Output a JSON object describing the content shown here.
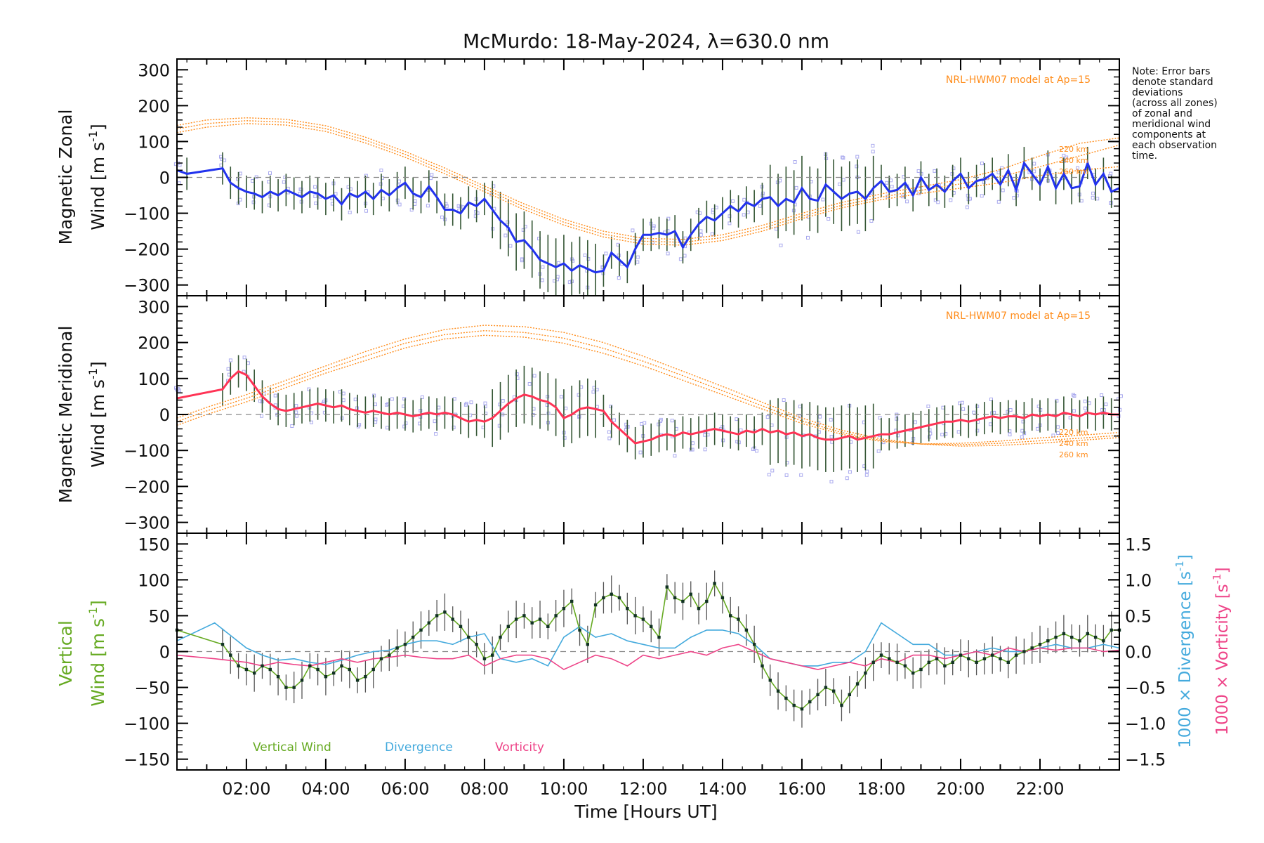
{
  "figure": {
    "title": "McMurdo: 18-May-2024, λ=630.0 nm",
    "note_lines": [
      "Note: Error bars",
      "denote standard",
      "deviations",
      "(across all zones)",
      "of zonal and",
      "meridional wind",
      "components at",
      "each observation",
      "time."
    ],
    "colors": {
      "zonal": "#2233ee",
      "meridional": "#ff3355",
      "model": "#ff8c1a",
      "vertical": "#66aa22",
      "divergence": "#44aadd",
      "vorticity": "#ee4488",
      "scatter": "#aaaaee",
      "errorbar": "#335533"
    }
  },
  "chart_data": [
    {
      "type": "line",
      "panel": "zonal",
      "ylabel_line1": "Magnetic Zonal",
      "ylabel_line2": "Wind [m s",
      "ylabel_sup": "-1",
      "ylabel_close": "]",
      "model_label": "NRL-HWM07 model at Ap=15",
      "height_labels": [
        "220 km",
        "240 km",
        "260 km"
      ],
      "xlim": [
        0.25,
        24.0
      ],
      "ylim": [
        -330,
        330
      ],
      "yticks": [
        -300,
        -200,
        -100,
        0,
        100,
        200,
        300
      ],
      "x": [
        0.25,
        0.5,
        1.4,
        1.6,
        1.8,
        2.0,
        2.2,
        2.4,
        2.6,
        2.8,
        3.0,
        3.2,
        3.4,
        3.6,
        3.8,
        4.0,
        4.2,
        4.4,
        4.6,
        4.8,
        5.0,
        5.2,
        5.4,
        5.6,
        5.8,
        6.0,
        6.2,
        6.4,
        6.6,
        6.8,
        7.0,
        7.2,
        7.4,
        7.6,
        7.8,
        8.0,
        8.2,
        8.4,
        8.6,
        8.8,
        9.0,
        9.2,
        9.4,
        9.6,
        9.8,
        10.0,
        10.2,
        10.4,
        10.6,
        10.8,
        11.0,
        11.2,
        11.4,
        11.6,
        11.8,
        12.0,
        12.2,
        12.4,
        12.6,
        12.8,
        13.0,
        13.2,
        13.4,
        13.6,
        13.8,
        14.0,
        14.2,
        14.4,
        14.6,
        14.8,
        15.0,
        15.2,
        15.4,
        15.6,
        15.8,
        16.0,
        16.2,
        16.4,
        16.6,
        16.8,
        17.0,
        17.2,
        17.4,
        17.6,
        17.8,
        18.0,
        18.2,
        18.4,
        18.6,
        18.8,
        19.0,
        19.2,
        19.4,
        19.6,
        19.8,
        20.0,
        20.2,
        20.4,
        20.6,
        20.8,
        21.0,
        21.2,
        21.4,
        21.6,
        21.8,
        22.0,
        22.2,
        22.4,
        22.6,
        22.8,
        23.0,
        23.2,
        23.4,
        23.6,
        23.8,
        24.0
      ],
      "y": [
        20,
        10,
        25,
        -15,
        -30,
        -40,
        -45,
        -55,
        -40,
        -50,
        -35,
        -45,
        -55,
        -40,
        -45,
        -60,
        -50,
        -75,
        -45,
        -55,
        -40,
        -60,
        -35,
        -50,
        -30,
        -15,
        -45,
        -55,
        -25,
        -55,
        -90,
        -90,
        -100,
        -70,
        -80,
        -60,
        -90,
        -120,
        -140,
        -180,
        -175,
        -200,
        -230,
        -240,
        -250,
        -240,
        -260,
        -245,
        -255,
        -265,
        -260,
        -210,
        -230,
        -250,
        -200,
        -160,
        -160,
        -155,
        -160,
        -150,
        -195,
        -160,
        -130,
        -110,
        -120,
        -100,
        -80,
        -95,
        -70,
        -80,
        -60,
        -55,
        -80,
        -60,
        -70,
        -30,
        -60,
        -65,
        -20,
        -40,
        -60,
        -45,
        -40,
        -60,
        -30,
        -10,
        -40,
        -35,
        -15,
        -50,
        0,
        -35,
        -20,
        -40,
        -10,
        10,
        -30,
        -10,
        -5,
        10,
        -20,
        20,
        -35,
        40,
        10,
        -20,
        30,
        -30,
        10,
        -30,
        -25,
        40,
        -20,
        10,
        -40,
        -30
      ],
      "model_x": [
        0.25,
        1.0,
        2.0,
        3.0,
        4.0,
        5.0,
        6.0,
        7.0,
        8.0,
        9.0,
        10.0,
        11.0,
        12.0,
        13.0,
        14.0,
        15.0,
        16.0,
        17.0,
        18.0,
        19.0,
        20.0,
        21.0,
        22.0,
        23.0,
        24.0
      ],
      "model_y": [
        [
          125,
          140,
          150,
          146,
          128,
          96,
          56,
          10,
          -40,
          -90,
          -133,
          -166,
          -186,
          -189,
          -176,
          -150,
          -115,
          -85,
          -62,
          -45,
          -30,
          -15,
          5,
          20,
          30
        ],
        [
          135,
          150,
          158,
          154,
          136,
          104,
          64,
          18,
          -32,
          -82,
          -125,
          -158,
          -178,
          -181,
          -168,
          -142,
          -108,
          -78,
          -55,
          -36,
          -18,
          2,
          30,
          60,
          90
        ],
        [
          145,
          160,
          166,
          162,
          144,
          112,
          72,
          26,
          -24,
          -74,
          -117,
          -150,
          -170,
          -173,
          -160,
          -134,
          -100,
          -70,
          -46,
          -26,
          -6,
          22,
          60,
          95,
          110
        ]
      ]
    },
    {
      "type": "line",
      "panel": "meridional",
      "ylabel_line1": "Magnetic Meridional",
      "ylabel_line2": "Wind [m s",
      "ylabel_sup": "-1",
      "ylabel_close": "]",
      "model_label": "NRL-HWM07 model at Ap=15",
      "height_labels": [
        "220 km",
        "240 km",
        "260 km"
      ],
      "xlim": [
        0.25,
        24.0
      ],
      "ylim": [
        -330,
        330
      ],
      "yticks": [
        -300,
        -200,
        -100,
        0,
        100,
        200,
        300
      ],
      "x": [
        0.25,
        1.4,
        1.6,
        1.8,
        2.0,
        2.2,
        2.4,
        2.6,
        2.8,
        3.0,
        3.2,
        3.4,
        3.6,
        3.8,
        4.0,
        4.2,
        4.4,
        4.6,
        4.8,
        5.0,
        5.2,
        5.4,
        5.6,
        5.8,
        6.0,
        6.2,
        6.4,
        6.6,
        6.8,
        7.0,
        7.2,
        7.4,
        7.6,
        7.8,
        8.0,
        8.2,
        8.4,
        8.6,
        8.8,
        9.0,
        9.2,
        9.4,
        9.6,
        9.8,
        10.0,
        10.2,
        10.4,
        10.6,
        10.8,
        11.0,
        11.2,
        11.4,
        11.6,
        11.8,
        12.0,
        12.2,
        12.4,
        12.6,
        12.8,
        13.0,
        13.2,
        13.4,
        13.6,
        13.8,
        14.0,
        14.2,
        14.4,
        14.6,
        14.8,
        15.0,
        15.2,
        15.4,
        15.6,
        15.8,
        16.0,
        16.2,
        16.4,
        16.6,
        16.8,
        17.0,
        17.2,
        17.4,
        17.6,
        17.8,
        18.0,
        18.2,
        18.4,
        18.6,
        18.8,
        19.0,
        19.2,
        19.4,
        19.6,
        19.8,
        20.0,
        20.2,
        20.4,
        20.6,
        20.8,
        21.0,
        21.2,
        21.4,
        21.6,
        21.8,
        22.0,
        22.2,
        22.4,
        22.6,
        22.8,
        23.0,
        23.2,
        23.4,
        23.6,
        23.8,
        24.0
      ],
      "y": [
        45,
        70,
        100,
        120,
        110,
        80,
        50,
        30,
        15,
        10,
        15,
        20,
        25,
        30,
        25,
        20,
        25,
        15,
        10,
        5,
        10,
        5,
        0,
        5,
        0,
        -5,
        0,
        5,
        0,
        5,
        0,
        -10,
        -20,
        -15,
        -20,
        -10,
        10,
        30,
        45,
        55,
        50,
        40,
        35,
        20,
        -10,
        0,
        15,
        20,
        15,
        10,
        -20,
        -40,
        -60,
        -80,
        -75,
        -70,
        -60,
        -55,
        -60,
        -50,
        -55,
        -50,
        -45,
        -40,
        -45,
        -50,
        -55,
        -45,
        -50,
        -40,
        -50,
        -45,
        -55,
        -50,
        -60,
        -55,
        -65,
        -70,
        -70,
        -65,
        -60,
        -70,
        -65,
        -60,
        -55,
        -55,
        -50,
        -45,
        -40,
        -35,
        -30,
        -25,
        -20,
        -20,
        -15,
        -20,
        -15,
        -10,
        -5,
        -10,
        -5,
        -5,
        -10,
        0,
        -5,
        0,
        -5,
        5,
        0,
        -5,
        5,
        0,
        5,
        0,
        0
      ],
      "model_x": [
        0.25,
        1.0,
        2.0,
        3.0,
        4.0,
        5.0,
        6.0,
        7.0,
        8.0,
        9.0,
        10.0,
        11.0,
        12.0,
        13.0,
        14.0,
        15.0,
        16.0,
        17.0,
        18.0,
        19.0,
        20.0,
        21.0,
        22.0,
        23.0,
        24.0
      ],
      "model_y": [
        [
          -30,
          0,
          35,
          75,
          115,
          150,
          185,
          210,
          220,
          215,
          198,
          170,
          135,
          95,
          55,
          15,
          -25,
          -55,
          -75,
          -82,
          -80,
          -74,
          -65,
          -58,
          -50
        ],
        [
          -20,
          10,
          45,
          85,
          125,
          162,
          198,
          222,
          233,
          228,
          212,
          184,
          148,
          108,
          66,
          24,
          -18,
          -50,
          -72,
          -82,
          -84,
          -80,
          -73,
          -66,
          -58
        ],
        [
          -10,
          20,
          55,
          95,
          135,
          175,
          210,
          236,
          248,
          244,
          228,
          200,
          162,
          120,
          78,
          34,
          -10,
          -44,
          -68,
          -82,
          -88,
          -86,
          -80,
          -72,
          -64
        ]
      ]
    },
    {
      "type": "line",
      "panel": "vertical",
      "ylabel_line1": "Vertical",
      "ylabel_line2": "Wind [m s",
      "ylabel_sup": "-1",
      "ylabel_close": "]",
      "right_axis1_label": "1000 × Divergence [s",
      "right_axis2_label": "1000 × Vorticity [s",
      "right_axis_sup": "-1",
      "right_axis_close": "]",
      "xlabel": "Time [Hours UT]",
      "xtick_labels": [
        "02:00",
        "04:00",
        "06:00",
        "08:00",
        "10:00",
        "12:00",
        "14:00",
        "16:00",
        "18:00",
        "20:00",
        "22:00"
      ],
      "xticks": [
        2,
        4,
        6,
        8,
        10,
        12,
        14,
        16,
        18,
        20,
        22
      ],
      "xlim": [
        0.25,
        24.0
      ],
      "ylim": [
        -165,
        165
      ],
      "yticks": [
        -150,
        -100,
        -50,
        0,
        50,
        100,
        150
      ],
      "y2lim": [
        -1.65,
        1.65
      ],
      "y2ticks": [
        -1.5,
        -1.0,
        -0.5,
        0.0,
        0.5,
        1.0,
        1.5
      ],
      "y2tick_labels": [
        "-1.5",
        "-1.0",
        "-0.5",
        "0.0",
        "0.5",
        "1.0",
        "1.5"
      ],
      "legend": [
        "Vertical Wind",
        "Divergence",
        "Vorticity"
      ],
      "vertical_x": [
        0.25,
        1.4,
        1.6,
        1.8,
        2.0,
        2.2,
        2.4,
        2.6,
        2.8,
        3.0,
        3.2,
        3.4,
        3.6,
        3.8,
        4.0,
        4.2,
        4.4,
        4.6,
        4.8,
        5.0,
        5.2,
        5.4,
        5.6,
        5.8,
        6.0,
        6.2,
        6.4,
        6.6,
        6.8,
        7.0,
        7.2,
        7.4,
        7.6,
        7.8,
        8.0,
        8.2,
        8.4,
        8.6,
        8.8,
        9.0,
        9.2,
        9.4,
        9.6,
        9.8,
        10.0,
        10.2,
        10.4,
        10.6,
        10.8,
        11.0,
        11.2,
        11.4,
        11.6,
        11.8,
        12.0,
        12.2,
        12.4,
        12.6,
        12.8,
        13.0,
        13.2,
        13.4,
        13.6,
        13.8,
        14.0,
        14.2,
        14.4,
        14.6,
        14.8,
        15.0,
        15.2,
        15.4,
        15.6,
        15.8,
        16.0,
        16.2,
        16.4,
        16.6,
        16.8,
        17.0,
        17.2,
        17.4,
        17.6,
        17.8,
        18.0,
        18.2,
        18.4,
        18.6,
        18.8,
        19.0,
        19.2,
        19.4,
        19.6,
        19.8,
        20.0,
        20.2,
        20.4,
        20.6,
        20.8,
        21.0,
        21.2,
        21.4,
        21.6,
        21.8,
        22.0,
        22.2,
        22.4,
        22.6,
        22.8,
        23.0,
        23.2,
        23.4,
        23.6,
        23.8,
        24.0
      ],
      "vertical_y": [
        30,
        10,
        -5,
        -20,
        -25,
        -30,
        -20,
        -25,
        -35,
        -50,
        -50,
        -40,
        -20,
        -25,
        -35,
        -30,
        -20,
        -25,
        -40,
        -35,
        -25,
        -10,
        -5,
        5,
        10,
        20,
        30,
        40,
        50,
        55,
        45,
        35,
        20,
        10,
        -10,
        -5,
        20,
        35,
        45,
        50,
        40,
        45,
        35,
        50,
        60,
        70,
        30,
        10,
        65,
        75,
        80,
        75,
        60,
        50,
        45,
        35,
        20,
        90,
        75,
        70,
        80,
        60,
        70,
        95,
        75,
        50,
        45,
        30,
        10,
        -20,
        -40,
        -55,
        -65,
        -75,
        -80,
        -70,
        -60,
        -50,
        -55,
        -75,
        -60,
        -45,
        -30,
        -15,
        -5,
        -10,
        -15,
        -20,
        -30,
        -25,
        -15,
        -10,
        -20,
        -15,
        -5,
        -10,
        -15,
        -10,
        -5,
        -10,
        -15,
        -5,
        0,
        5,
        10,
        15,
        20,
        25,
        20,
        15,
        25,
        20,
        15,
        30,
        30
      ],
      "divergence_x": [
        0.25,
        1.2,
        2.0,
        2.4,
        2.8,
        3.2,
        3.6,
        4.0,
        4.4,
        4.8,
        5.2,
        5.6,
        6.0,
        6.4,
        6.8,
        7.2,
        7.6,
        8.0,
        8.4,
        8.8,
        9.2,
        9.6,
        10.0,
        10.4,
        10.8,
        11.2,
        11.6,
        12.0,
        12.4,
        12.8,
        13.2,
        13.6,
        14.0,
        14.4,
        14.8,
        15.2,
        15.6,
        16.0,
        16.4,
        16.8,
        17.2,
        17.6,
        18.0,
        18.4,
        18.8,
        19.2,
        19.6,
        20.0,
        20.4,
        20.8,
        21.2,
        21.6,
        22.0,
        22.4,
        22.8,
        23.2,
        23.6,
        24.0
      ],
      "divergence_y": [
        0.15,
        0.4,
        0.05,
        -0.05,
        -0.12,
        -0.1,
        -0.15,
        -0.18,
        -0.12,
        -0.05,
        0.0,
        0.02,
        0.1,
        0.15,
        0.15,
        0.1,
        0.2,
        0.25,
        -0.1,
        -0.15,
        -0.1,
        -0.2,
        0.2,
        0.35,
        0.2,
        0.25,
        0.15,
        0.1,
        0.05,
        0.05,
        0.2,
        0.3,
        0.3,
        0.25,
        0.1,
        -0.1,
        -0.15,
        -0.2,
        -0.2,
        -0.15,
        -0.15,
        0.0,
        0.4,
        0.25,
        0.1,
        0.1,
        -0.05,
        -0.05,
        0.0,
        0.05,
        0.0,
        0.0,
        0.05,
        0.1,
        0.05,
        0.05,
        0.1,
        0.05
      ],
      "vorticity_x": [
        0.25,
        1.2,
        2.0,
        2.4,
        2.8,
        3.2,
        3.6,
        4.0,
        4.4,
        4.8,
        5.2,
        5.6,
        6.0,
        6.4,
        6.8,
        7.2,
        7.6,
        8.0,
        8.4,
        8.8,
        9.2,
        9.6,
        10.0,
        10.4,
        10.8,
        11.2,
        11.6,
        12.0,
        12.4,
        12.8,
        13.2,
        13.6,
        14.0,
        14.4,
        14.8,
        15.2,
        15.6,
        16.0,
        16.4,
        16.8,
        17.2,
        17.6,
        18.0,
        18.4,
        18.8,
        19.2,
        19.6,
        20.0,
        20.4,
        20.8,
        21.2,
        21.6,
        22.0,
        22.4,
        22.8,
        23.2,
        23.6,
        24.0
      ],
      "vorticity_y": [
        -0.05,
        -0.1,
        -0.15,
        -0.2,
        -0.15,
        -0.18,
        -0.2,
        -0.15,
        -0.1,
        -0.15,
        -0.1,
        -0.08,
        -0.05,
        -0.08,
        -0.1,
        -0.1,
        -0.05,
        -0.2,
        -0.1,
        -0.05,
        -0.05,
        -0.1,
        -0.25,
        -0.15,
        -0.05,
        -0.1,
        -0.2,
        -0.05,
        -0.1,
        -0.05,
        0.0,
        -0.05,
        0.05,
        0.1,
        0.0,
        -0.1,
        -0.15,
        -0.2,
        -0.25,
        -0.2,
        -0.15,
        -0.2,
        -0.1,
        -0.15,
        -0.05,
        -0.05,
        -0.1,
        -0.05,
        0.0,
        -0.05,
        0.05,
        0.0,
        0.05,
        0.02,
        0.05,
        0.05,
        0.0,
        0.02
      ]
    }
  ]
}
